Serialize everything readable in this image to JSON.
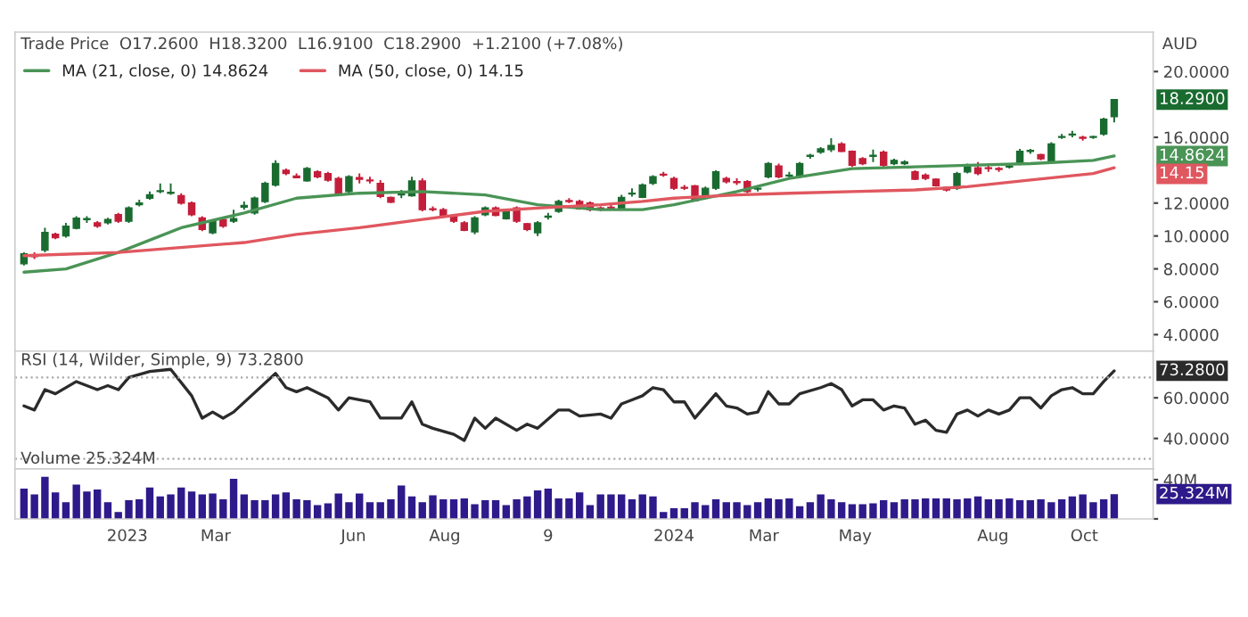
{
  "chart_data": [
    {
      "type": "candlestick",
      "title": "Trade Price  O17.2600  H18.3200  L16.9100  C18.2900  +1.2100 (+7.08%)",
      "ylabel": "AUD",
      "legend": "top left",
      "x": [
        "2022-10-24",
        "2022-10-31",
        "2022-11-07",
        "2022-11-14",
        "2022-11-21",
        "2022-11-28",
        "2022-12-05",
        "2022-12-12",
        "2022-12-19",
        "2022-12-26",
        "2023-01-02",
        "2023-01-09",
        "2023-01-16",
        "2023-01-23",
        "2023-01-30",
        "2023-02-06",
        "2023-02-13",
        "2023-02-20",
        "2023-02-27",
        "2023-03-06",
        "2023-03-13",
        "2023-03-20",
        "2023-03-27",
        "2023-04-03",
        "2023-04-10",
        "2023-04-17",
        "2023-04-24",
        "2023-05-01",
        "2023-05-08",
        "2023-05-15",
        "2023-05-22",
        "2023-05-29",
        "2023-06-05",
        "2023-06-12",
        "2023-06-19",
        "2023-06-26",
        "2023-07-03",
        "2023-07-10",
        "2023-07-17",
        "2023-07-24",
        "2023-07-31",
        "2023-08-07",
        "2023-08-14",
        "2023-08-21",
        "2023-08-28",
        "2023-09-04",
        "2023-09-11",
        "2023-09-18",
        "2023-09-25",
        "2023-10-02",
        "2023-10-09",
        "2023-10-16",
        "2023-10-23",
        "2023-10-30",
        "2023-11-06",
        "2023-11-13",
        "2023-11-20",
        "2023-11-27",
        "2023-12-04",
        "2023-12-11",
        "2023-12-18",
        "2023-12-25",
        "2024-01-01",
        "2024-01-08",
        "2024-01-15",
        "2024-01-22",
        "2024-01-29",
        "2024-02-05",
        "2024-02-12",
        "2024-02-19",
        "2024-02-26",
        "2024-03-04",
        "2024-03-11",
        "2024-03-18",
        "2024-03-25",
        "2024-04-01",
        "2024-04-08",
        "2024-04-15",
        "2024-04-22",
        "2024-04-29",
        "2024-05-06",
        "2024-05-13",
        "2024-05-20",
        "2024-05-27",
        "2024-06-03",
        "2024-06-10",
        "2024-06-17",
        "2024-06-24",
        "2024-07-01",
        "2024-07-08",
        "2024-07-15",
        "2024-07-22",
        "2024-07-29",
        "2024-08-05",
        "2024-08-12",
        "2024-08-19",
        "2024-08-26",
        "2024-09-02",
        "2024-09-09",
        "2024-09-16",
        "2024-09-23",
        "2024-09-30",
        "2024-10-07",
        "2024-10-14",
        "2024-10-21"
      ],
      "ohlc": [
        [
          8.31,
          9.0,
          8.2,
          8.92
        ],
        [
          8.85,
          9.0,
          8.6,
          8.75
        ],
        [
          9.14,
          10.5,
          9.0,
          10.22
        ],
        [
          10.1,
          10.2,
          9.8,
          9.9
        ],
        [
          10.0,
          10.8,
          9.9,
          10.6
        ],
        [
          10.47,
          11.2,
          10.4,
          11.08
        ],
        [
          11.0,
          11.2,
          10.8,
          11.05
        ],
        [
          10.8,
          10.9,
          10.5,
          10.6
        ],
        [
          10.8,
          11.1,
          10.7,
          11.0
        ],
        [
          11.3,
          11.4,
          10.8,
          10.9
        ],
        [
          10.9,
          11.8,
          10.8,
          11.7
        ],
        [
          11.9,
          12.2,
          11.8,
          12.0
        ],
        [
          12.3,
          12.7,
          12.2,
          12.5
        ],
        [
          12.7,
          13.2,
          12.6,
          12.75
        ],
        [
          12.6,
          13.2,
          12.5,
          12.65
        ],
        [
          12.45,
          12.6,
          11.9,
          12.0
        ],
        [
          12.0,
          12.1,
          11.2,
          11.3
        ],
        [
          11.1,
          11.2,
          10.3,
          10.4
        ],
        [
          10.2,
          11.0,
          10.1,
          10.9
        ],
        [
          11.0,
          11.1,
          10.5,
          10.6
        ],
        [
          10.9,
          11.6,
          10.8,
          11.05
        ],
        [
          11.75,
          12.1,
          11.6,
          11.85
        ],
        [
          11.4,
          12.4,
          11.3,
          12.3
        ],
        [
          12.1,
          13.3,
          12.0,
          13.2
        ],
        [
          13.1,
          14.6,
          13.0,
          14.4
        ],
        [
          14.0,
          14.1,
          13.7,
          13.8
        ],
        [
          13.65,
          13.8,
          13.5,
          13.55
        ],
        [
          13.35,
          14.2,
          13.3,
          14.1
        ],
        [
          13.9,
          14.0,
          13.5,
          13.6
        ],
        [
          13.8,
          13.9,
          13.3,
          13.4
        ],
        [
          13.5,
          13.6,
          12.5,
          12.55
        ],
        [
          12.7,
          13.7,
          12.6,
          13.6
        ],
        [
          13.55,
          13.8,
          13.2,
          13.45
        ],
        [
          13.4,
          13.6,
          13.2,
          13.35
        ],
        [
          13.2,
          13.4,
          12.3,
          12.4
        ],
        [
          12.35,
          12.4,
          12.0,
          12.05
        ],
        [
          12.5,
          12.8,
          12.3,
          12.55
        ],
        [
          12.45,
          13.6,
          12.4,
          13.35
        ],
        [
          13.35,
          13.5,
          11.5,
          11.6
        ],
        [
          11.65,
          11.8,
          11.5,
          11.6
        ],
        [
          11.6,
          11.7,
          11.2,
          11.25
        ],
        [
          11.25,
          11.3,
          10.8,
          10.9
        ],
        [
          10.8,
          10.9,
          10.3,
          10.35
        ],
        [
          10.25,
          11.2,
          10.1,
          11.1
        ],
        [
          11.3,
          11.8,
          11.2,
          11.7
        ],
        [
          11.7,
          11.8,
          11.2,
          11.25
        ],
        [
          11.05,
          11.6,
          11.0,
          11.55
        ],
        [
          11.7,
          11.8,
          10.8,
          10.9
        ],
        [
          10.75,
          10.8,
          10.3,
          10.4
        ],
        [
          10.2,
          10.9,
          10.0,
          10.8
        ],
        [
          11.15,
          11.4,
          11.0,
          11.2
        ],
        [
          11.5,
          12.2,
          11.4,
          12.1
        ],
        [
          12.15,
          12.3,
          12.0,
          12.1
        ],
        [
          12.1,
          12.2,
          11.6,
          11.65
        ],
        [
          12.0,
          12.1,
          11.5,
          11.6
        ],
        [
          11.7,
          11.8,
          11.5,
          11.65
        ],
        [
          11.75,
          11.9,
          11.6,
          11.7
        ],
        [
          11.7,
          12.5,
          11.6,
          12.35
        ],
        [
          12.55,
          12.9,
          12.4,
          12.6
        ],
        [
          12.35,
          13.2,
          12.3,
          13.1
        ],
        [
          13.2,
          13.7,
          13.1,
          13.6
        ],
        [
          13.75,
          13.9,
          13.6,
          13.7
        ],
        [
          13.5,
          13.6,
          12.8,
          12.9
        ],
        [
          12.95,
          13.1,
          12.8,
          12.9
        ],
        [
          13.05,
          13.1,
          12.1,
          12.15
        ],
        [
          12.45,
          13.0,
          12.4,
          12.9
        ],
        [
          12.9,
          14.0,
          12.8,
          13.9
        ],
        [
          13.5,
          13.6,
          13.2,
          13.3
        ],
        [
          13.3,
          13.5,
          13.1,
          13.25
        ],
        [
          13.3,
          13.4,
          12.6,
          12.7
        ],
        [
          12.85,
          13.0,
          12.7,
          12.9
        ],
        [
          13.6,
          14.5,
          13.5,
          14.4
        ],
        [
          14.25,
          14.4,
          13.5,
          13.6
        ],
        [
          13.65,
          13.9,
          13.5,
          13.7
        ],
        [
          13.6,
          14.5,
          13.5,
          14.4
        ],
        [
          14.85,
          15.0,
          14.7,
          14.9
        ],
        [
          15.1,
          15.4,
          15.0,
          15.3
        ],
        [
          15.25,
          15.95,
          15.1,
          15.5
        ],
        [
          15.6,
          15.7,
          15.1,
          15.15
        ],
        [
          15.15,
          15.2,
          14.2,
          14.3
        ],
        [
          14.7,
          14.8,
          14.3,
          14.4
        ],
        [
          14.85,
          15.25,
          14.5,
          14.9
        ],
        [
          15.1,
          15.2,
          14.2,
          14.3
        ],
        [
          14.4,
          14.7,
          14.3,
          14.6
        ],
        [
          14.4,
          14.6,
          14.3,
          14.5
        ],
        [
          13.9,
          14.0,
          13.4,
          13.45
        ],
        [
          13.7,
          13.8,
          13.4,
          13.5
        ],
        [
          13.45,
          13.5,
          13.0,
          13.05
        ],
        [
          12.95,
          13.0,
          12.7,
          12.8
        ],
        [
          12.9,
          13.9,
          12.8,
          13.8
        ],
        [
          13.9,
          14.4,
          13.8,
          14.25
        ],
        [
          14.15,
          14.5,
          13.7,
          13.8
        ],
        [
          14.15,
          14.4,
          13.9,
          14.1
        ],
        [
          14.1,
          14.2,
          13.9,
          14.05
        ],
        [
          14.2,
          14.4,
          14.1,
          14.25
        ],
        [
          14.4,
          15.3,
          14.3,
          15.15
        ],
        [
          15.15,
          15.3,
          15.0,
          15.2
        ],
        [
          14.95,
          15.0,
          14.6,
          14.7
        ],
        [
          14.5,
          15.7,
          14.4,
          15.6
        ],
        [
          16.0,
          16.2,
          15.9,
          16.05
        ],
        [
          16.15,
          16.4,
          16.0,
          16.2
        ],
        [
          16.0,
          16.1,
          15.8,
          15.95
        ],
        [
          16.0,
          16.1,
          15.9,
          16.05
        ],
        [
          16.2,
          17.2,
          16.1,
          17.1
        ],
        [
          17.26,
          18.32,
          16.91,
          18.29
        ]
      ],
      "colors": [
        "#1a6b30",
        "#c41e3a",
        "#1a6b30",
        "#c41e3a",
        "#1a6b30",
        "#1a6b30",
        "#1a6b30",
        "#c41e3a",
        "#1a6b30",
        "#c41e3a",
        "#1a6b30",
        "#1a6b30",
        "#1a6b30",
        "#1a6b30",
        "#1a6b30",
        "#c41e3a",
        "#c41e3a",
        "#c41e3a",
        "#1a6b30",
        "#c41e3a",
        "#1a6b30",
        "#1a6b30",
        "#1a6b30",
        "#1a6b30",
        "#1a6b30",
        "#c41e3a",
        "#c41e3a",
        "#1a6b30",
        "#c41e3a",
        "#c41e3a",
        "#c41e3a",
        "#1a6b30",
        "#c41e3a",
        "#c41e3a",
        "#c41e3a",
        "#c41e3a",
        "#1a6b30",
        "#1a6b30",
        "#c41e3a",
        "#c41e3a",
        "#c41e3a",
        "#c41e3a",
        "#c41e3a",
        "#1a6b30",
        "#1a6b30",
        "#c41e3a",
        "#1a6b30",
        "#c41e3a",
        "#c41e3a",
        "#1a6b30",
        "#1a6b30",
        "#1a6b30",
        "#c41e3a",
        "#c41e3a",
        "#c41e3a",
        "#c41e3a",
        "#c41e3a",
        "#1a6b30",
        "#1a6b30",
        "#1a6b30",
        "#1a6b30",
        "#c41e3a",
        "#c41e3a",
        "#c41e3a",
        "#c41e3a",
        "#1a6b30",
        "#1a6b30",
        "#c41e3a",
        "#c41e3a",
        "#c41e3a",
        "#1a6b30",
        "#1a6b30",
        "#c41e3a",
        "#1a6b30",
        "#1a6b30",
        "#1a6b30",
        "#1a6b30",
        "#1a6b30",
        "#c41e3a",
        "#c41e3a",
        "#c41e3a",
        "#1a6b30",
        "#c41e3a",
        "#1a6b30",
        "#1a6b30",
        "#c41e3a",
        "#c41e3a",
        "#c41e3a",
        "#c41e3a",
        "#1a6b30",
        "#1a6b30",
        "#c41e3a",
        "#c41e3a",
        "#c41e3a",
        "#1a6b30",
        "#1a6b30",
        "#1a6b30",
        "#c41e3a",
        "#1a6b30",
        "#1a6b30",
        "#1a6b30",
        "#c41e3a",
        "#1a6b30",
        "#1a6b30",
        "#1a6b30"
      ],
      "series": [
        {
          "type": "line",
          "name": "MA (21, close, 0) 14.8624",
          "color": "#4a9456",
          "x": [
            "2022-10-24",
            "2022-11-21",
            "2022-12-26",
            "2023-02-06",
            "2023-03-20",
            "2023-04-24",
            "2023-06-05",
            "2023-07-17",
            "2023-08-28",
            "2023-10-02",
            "2023-11-13",
            "2023-12-11",
            "2024-01-01",
            "2024-02-12",
            "2024-03-18",
            "2024-04-29",
            "2024-06-10",
            "2024-07-15",
            "2024-08-26",
            "2024-10-07",
            "2024-10-21"
          ],
          "values": [
            7.8,
            8.0,
            9.0,
            10.5,
            11.4,
            12.3,
            12.6,
            12.7,
            12.5,
            11.9,
            11.6,
            11.6,
            11.9,
            12.7,
            13.5,
            14.1,
            14.2,
            14.3,
            14.4,
            14.6,
            14.8624
          ]
        },
        {
          "type": "line",
          "name": "MA (50, close, 0) 14.15",
          "color": "#e0575f",
          "x": [
            "2022-10-24",
            "2022-12-26",
            "2023-03-20",
            "2023-04-24",
            "2023-06-05",
            "2023-07-17",
            "2023-08-28",
            "2023-10-02",
            "2023-11-13",
            "2023-12-11",
            "2024-01-01",
            "2024-02-12",
            "2024-03-18",
            "2024-04-29",
            "2024-06-10",
            "2024-07-15",
            "2024-08-26",
            "2024-10-07",
            "2024-10-21"
          ],
          "values": [
            8.8,
            9.0,
            9.6,
            10.1,
            10.5,
            11.0,
            11.5,
            11.7,
            11.9,
            12.1,
            12.3,
            12.5,
            12.6,
            12.7,
            12.8,
            13.0,
            13.4,
            13.8,
            14.15
          ]
        }
      ],
      "annotations": [
        {
          "text": "18.2900",
          "x": "2024-10-21",
          "y": 18.29
        },
        {
          "text": "14.8624",
          "x": "2024-10-21",
          "y": 14.8624
        },
        {
          "text": "14.15",
          "x": "2024-10-21",
          "y": 14.15
        }
      ],
      "xlim": [
        "2022-10-18",
        "2024-11-16"
      ],
      "ylim": [
        3,
        22.4
      ],
      "yticks": [
        {
          "value": 4,
          "label": "4.0000"
        },
        {
          "value": 6,
          "label": "6.0000"
        },
        {
          "value": 8,
          "label": "8.0000"
        },
        {
          "value": 10,
          "label": "10.0000"
        },
        {
          "value": 12,
          "label": "12.0000"
        },
        {
          "value": 16,
          "label": "16.0000"
        },
        {
          "value": 20,
          "label": "20.0000"
        }
      ],
      "tick_labels": "y"
    },
    {
      "type": "line",
      "title": "RSI (14, Wilder, Simple, 9) 73.2800",
      "series": [
        {
          "color": "#2b2b2b",
          "x": [
            "2022-10-24",
            "2022-10-31",
            "2022-11-07",
            "2022-11-14",
            "2022-11-28",
            "2022-12-12",
            "2022-12-19",
            "2022-12-26",
            "2023-01-02",
            "2023-01-16",
            "2023-01-30",
            "2023-02-13",
            "2023-02-20",
            "2023-02-27",
            "2023-03-06",
            "2023-03-13",
            "2023-04-10",
            "2023-04-17",
            "2023-04-24",
            "2023-05-01",
            "2023-05-15",
            "2023-05-22",
            "2023-05-29",
            "2023-06-12",
            "2023-06-19",
            "2023-06-26",
            "2023-07-03",
            "2023-07-10",
            "2023-07-17",
            "2023-07-24",
            "2023-08-07",
            "2023-08-14",
            "2023-08-21",
            "2023-08-28",
            "2023-09-04",
            "2023-09-18",
            "2023-09-25",
            "2023-10-02",
            "2023-10-16",
            "2023-10-23",
            "2023-10-30",
            "2023-11-13",
            "2023-11-20",
            "2023-11-27",
            "2023-12-04",
            "2023-12-11",
            "2023-12-18",
            "2023-12-25",
            "2024-01-01",
            "2024-01-08",
            "2024-01-15",
            "2024-01-29",
            "2024-02-05",
            "2024-02-12",
            "2024-02-19",
            "2024-02-26",
            "2024-03-04",
            "2024-03-11",
            "2024-03-18",
            "2024-03-25",
            "2024-04-08",
            "2024-04-15",
            "2024-04-22",
            "2024-04-29",
            "2024-05-06",
            "2024-05-13",
            "2024-05-20",
            "2024-05-27",
            "2024-06-03",
            "2024-06-10",
            "2024-06-17",
            "2024-06-24",
            "2024-07-01",
            "2024-07-08",
            "2024-07-15",
            "2024-07-22",
            "2024-07-29",
            "2024-08-05",
            "2024-08-12",
            "2024-08-19",
            "2024-08-26",
            "2024-09-02",
            "2024-09-09",
            "2024-09-16",
            "2024-09-23",
            "2024-09-30",
            "2024-10-07",
            "2024-10-14",
            "2024-10-21"
          ],
          "values": [
            56,
            54,
            64,
            62,
            68,
            64,
            66,
            64,
            70,
            73,
            74,
            61,
            50,
            53,
            50,
            53,
            72,
            65,
            63,
            65,
            60,
            54,
            60,
            58,
            50,
            50,
            50,
            58,
            47,
            45,
            42,
            39,
            50,
            45,
            50,
            44,
            47,
            45,
            54,
            54,
            51,
            52,
            50,
            57,
            59,
            61,
            65,
            64,
            58,
            58,
            50,
            62,
            56,
            55,
            52,
            53,
            63,
            57,
            57,
            62,
            65,
            67,
            64,
            56,
            59,
            59,
            54,
            56,
            55,
            47,
            49,
            44,
            43,
            52,
            54,
            51,
            54,
            52,
            54,
            60,
            60,
            55,
            61,
            64,
            65,
            62,
            62,
            68,
            73.28
          ]
        }
      ],
      "ref_lines": [
        {
          "axis": "y",
          "value": 70,
          "color": "#aaaaaa",
          "line_style": "dotted"
        },
        {
          "axis": "y",
          "value": 30,
          "color": "#aaaaaa",
          "line_style": "dotted"
        }
      ],
      "annotations": [
        {
          "text": "73.2800",
          "x": "2024-10-21",
          "y": 73.28
        }
      ],
      "xlim": [
        "2022-10-18",
        "2024-11-16"
      ],
      "ylim": [
        25,
        83
      ],
      "yticks": [
        {
          "value": 40,
          "label": "40.0000"
        },
        {
          "value": 60,
          "label": "60.0000"
        }
      ],
      "tick_labels": "y"
    },
    {
      "type": "bar",
      "title": "Volume 25.324M",
      "x": [
        "2022-10-24",
        "2022-10-31",
        "2022-11-07",
        "2022-11-14",
        "2022-11-21",
        "2022-11-28",
        "2022-12-05",
        "2022-12-12",
        "2022-12-19",
        "2022-12-26",
        "2023-01-02",
        "2023-01-09",
        "2023-01-16",
        "2023-01-23",
        "2023-01-30",
        "2023-02-06",
        "2023-02-13",
        "2023-02-20",
        "2023-02-27",
        "2023-03-06",
        "2023-03-13",
        "2023-03-20",
        "2023-03-27",
        "2023-04-03",
        "2023-04-10",
        "2023-04-17",
        "2023-04-24",
        "2023-05-01",
        "2023-05-08",
        "2023-05-15",
        "2023-05-22",
        "2023-05-29",
        "2023-06-05",
        "2023-06-12",
        "2023-06-19",
        "2023-06-26",
        "2023-07-03",
        "2023-07-10",
        "2023-07-17",
        "2023-07-24",
        "2023-07-31",
        "2023-08-07",
        "2023-08-14",
        "2023-08-21",
        "2023-08-28",
        "2023-09-04",
        "2023-09-11",
        "2023-09-18",
        "2023-09-25",
        "2023-10-02",
        "2023-10-09",
        "2023-10-16",
        "2023-10-23",
        "2023-10-30",
        "2023-11-06",
        "2023-11-13",
        "2023-11-20",
        "2023-11-27",
        "2023-12-04",
        "2023-12-11",
        "2023-12-18",
        "2023-12-25",
        "2024-01-01",
        "2024-01-08",
        "2024-01-15",
        "2024-01-22",
        "2024-01-29",
        "2024-02-05",
        "2024-02-12",
        "2024-02-19",
        "2024-02-26",
        "2024-03-04",
        "2024-03-11",
        "2024-03-18",
        "2024-03-25",
        "2024-04-01",
        "2024-04-08",
        "2024-04-15",
        "2024-04-22",
        "2024-04-29",
        "2024-05-06",
        "2024-05-13",
        "2024-05-20",
        "2024-05-27",
        "2024-06-03",
        "2024-06-10",
        "2024-06-17",
        "2024-06-24",
        "2024-07-01",
        "2024-07-08",
        "2024-07-15",
        "2024-07-22",
        "2024-07-29",
        "2024-08-05",
        "2024-08-12",
        "2024-08-19",
        "2024-08-26",
        "2024-09-02",
        "2024-09-09",
        "2024-09-16",
        "2024-09-23",
        "2024-09-30",
        "2024-10-07",
        "2024-10-14",
        "2024-10-21"
      ],
      "series": [
        {
          "color": "#2e1a8a",
          "values": [
            31,
            25,
            43,
            27,
            17,
            35,
            28,
            30,
            17,
            7,
            19,
            20,
            32,
            23,
            25,
            32,
            28,
            25,
            26,
            20,
            41,
            25,
            19,
            19,
            25,
            27,
            20,
            19,
            14,
            16,
            26,
            17,
            26,
            17,
            17,
            20,
            34,
            23,
            17,
            24,
            20,
            20,
            21,
            15,
            19,
            19,
            14,
            20,
            23,
            29,
            31,
            21,
            21,
            27,
            14,
            25,
            25,
            25,
            20,
            25,
            23,
            7,
            11,
            11,
            17,
            14,
            20,
            17,
            17,
            14,
            17,
            21,
            20,
            21,
            13,
            17,
            25,
            20,
            17,
            15,
            15,
            16,
            19,
            17,
            20,
            20,
            21,
            21,
            21,
            20,
            21,
            23,
            20,
            20,
            21,
            19,
            19,
            20,
            17,
            20,
            23,
            25,
            17,
            20,
            25.324
          ]
        }
      ],
      "annotations": [
        {
          "text": "25.324M",
          "x": "2024-10-21",
          "y": 25.324
        }
      ],
      "xlim": [
        "2022-10-18",
        "2024-11-16"
      ],
      "ylim": [
        0,
        51
      ],
      "yticks": [
        {
          "value": 0,
          "label": null
        },
        {
          "value": 40,
          "label": "40M"
        }
      ],
      "xticks": [
        {
          "value": "2023-01-01",
          "label": "2023"
        },
        {
          "value": "2023-03-01",
          "label": "Mar"
        },
        {
          "value": "2023-06-01",
          "label": "Jun"
        },
        {
          "value": "2023-08-01",
          "label": "Aug"
        },
        {
          "value": "2023-10-09",
          "label": "9"
        },
        {
          "value": "2024-01-01",
          "label": "2024"
        },
        {
          "value": "2024-03-01",
          "label": "Mar"
        },
        {
          "value": "2024-05-01",
          "label": "May"
        },
        {
          "value": "2024-08-01",
          "label": "Aug"
        },
        {
          "value": "2024-10-01",
          "label": "Oct"
        }
      ]
    }
  ]
}
